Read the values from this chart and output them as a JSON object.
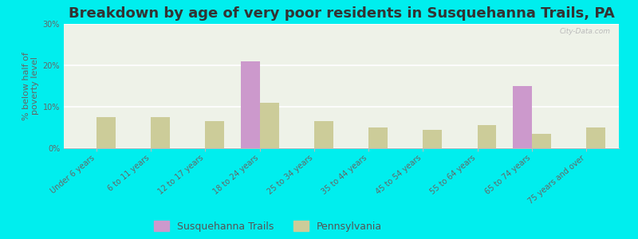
{
  "title": "Breakdown by age of very poor residents in Susquehanna Trails, PA",
  "categories": [
    "Under 6 years",
    "6 to 11 years",
    "12 to 17 years",
    "18 to 24 years",
    "25 to 34 years",
    "35 to 44 years",
    "45 to 54 years",
    "55 to 64 years",
    "65 to 74 years",
    "75 years and over"
  ],
  "susquehanna_values": [
    0,
    0,
    0,
    21,
    0,
    0,
    0,
    0,
    15,
    0
  ],
  "pennsylvania_values": [
    7.5,
    7.5,
    6.5,
    11,
    6.5,
    5,
    4.5,
    5.5,
    3.5,
    5
  ],
  "susquehanna_color": "#cc99cc",
  "pennsylvania_color": "#cccc99",
  "background_outer": "#00eeee",
  "background_plot": "#eef2e8",
  "ylabel": "% below half of\npoverty level",
  "ylim": [
    0,
    30
  ],
  "yticks": [
    0,
    10,
    20,
    30
  ],
  "ytick_labels": [
    "0%",
    "10%",
    "20%",
    "30%"
  ],
  "bar_width": 0.35,
  "title_fontsize": 13,
  "axis_label_fontsize": 8,
  "tick_label_fontsize": 7,
  "legend_fontsize": 9
}
